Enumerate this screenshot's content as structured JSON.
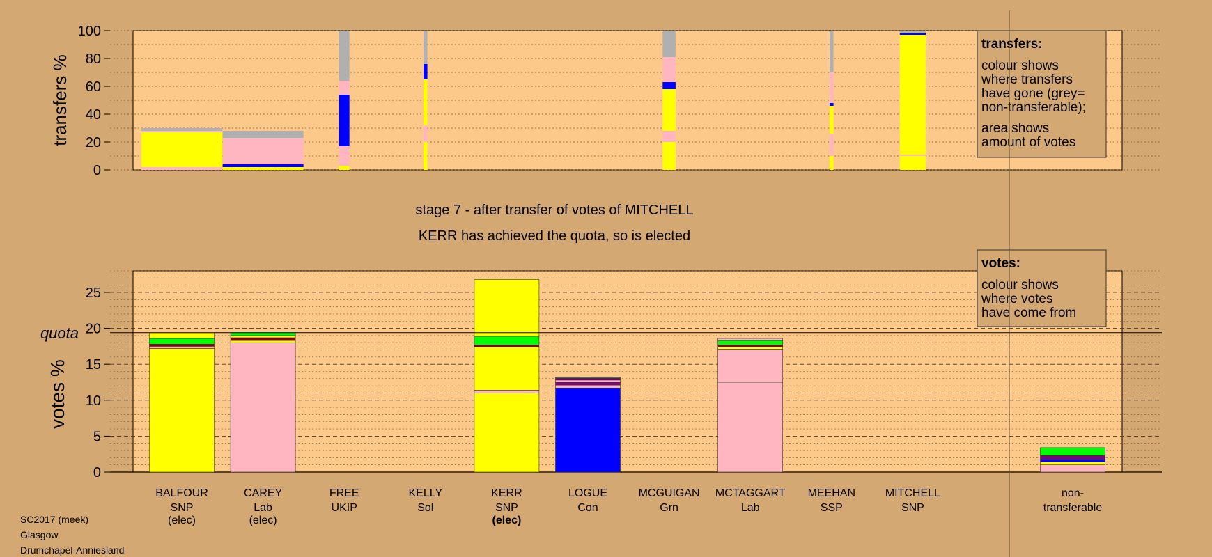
{
  "chart_data": [
    {
      "type": "bar",
      "ylabel": "transfers %",
      "ylim": [
        0,
        100
      ],
      "yticks": [
        0,
        20,
        40,
        60,
        80,
        100
      ],
      "categories": [
        "BALFOUR",
        "CAREY",
        "FREE",
        "KELLY",
        "KERR",
        "LOGUE",
        "MCGUIGAN",
        "MCTAGGART",
        "MEEHAN",
        "MITCHELL"
      ],
      "series": [
        {
          "values": [
            [
              {
                "h": 2,
                "color": "#ffb6c1"
              },
              {
                "h": 25,
                "color": "#ffff00"
              },
              {
                "h": 1,
                "color": "#ffb6c1"
              },
              {
                "h": 2,
                "color": "#b0b0b0"
              }
            ],
            [
              {
                "h": 2,
                "color": "#ffff00"
              },
              {
                "h": 2,
                "color": "#0000ff"
              },
              {
                "h": 19,
                "color": "#ffb6c1"
              },
              {
                "h": 5,
                "color": "#b0b0b0"
              }
            ],
            [
              {
                "h": 3,
                "color": "#ffff00"
              },
              {
                "h": 14,
                "color": "#ffb6c1"
              },
              {
                "h": 37,
                "color": "#0000ff"
              },
              {
                "h": 10,
                "color": "#ffb6c1"
              },
              {
                "h": 36,
                "color": "#b0b0b0"
              }
            ],
            [
              {
                "h": 20,
                "color": "#ffff00"
              },
              {
                "h": 12,
                "color": "#ffb6c1"
              },
              {
                "h": 33,
                "color": "#ffff00"
              },
              {
                "h": 11,
                "color": "#0000ff"
              },
              {
                "h": 24,
                "color": "#b0b0b0"
              }
            ],
            null,
            null,
            [
              {
                "h": 20,
                "color": "#ffff00"
              },
              {
                "h": 8,
                "color": "#ffb6c1"
              },
              {
                "h": 30,
                "color": "#ffff00"
              },
              {
                "h": 5,
                "color": "#0000ff"
              },
              {
                "h": 18,
                "color": "#ffb6c1"
              },
              {
                "h": 19,
                "color": "#b0b0b0"
              }
            ],
            null,
            [
              {
                "h": 10,
                "color": "#ffff00"
              },
              {
                "h": 16,
                "color": "#ffb6c1"
              },
              {
                "h": 20,
                "color": "#ffff00"
              },
              {
                "h": 2,
                "color": "#0000ff"
              },
              {
                "h": 22,
                "color": "#ffb6c1"
              },
              {
                "h": 30,
                "color": "#b0b0b0"
              }
            ],
            [
              {
                "h": 10,
                "color": "#ffff00"
              },
              {
                "h": 1,
                "color": "#ffb6c1"
              },
              {
                "h": 86,
                "color": "#ffff00"
              },
              {
                "h": 1,
                "color": "#0000ff"
              },
              {
                "h": 2,
                "color": "#b0b0b0"
              }
            ]
          ]
        }
      ],
      "widths": [
        1,
        1,
        0.16,
        0.06,
        0,
        0,
        0.2,
        0,
        0.06,
        0.4
      ]
    },
    {
      "type": "bar",
      "ylabel": "votes %",
      "ylim": [
        0,
        28
      ],
      "yticks": [
        0,
        5,
        10,
        15,
        20,
        25
      ],
      "quota": 19.4,
      "quota_label": "quota",
      "categories": [
        "BALFOUR",
        "CAREY",
        "FREE",
        "KELLY",
        "KERR",
        "LOGUE",
        "MCGUIGAN",
        "MCTAGGART",
        "MEEHAN",
        "MITCHELL",
        "non-transferable"
      ],
      "series": [
        {
          "values": [
            [
              {
                "v": 17.2,
                "color": "#ffff00"
              },
              {
                "v": 0.3,
                "color": "#ffb6c1"
              },
              {
                "v": 0.3,
                "color": "#8b0000"
              },
              {
                "v": 0.8,
                "color": "#00ff00"
              },
              {
                "v": 0.8,
                "color": "#ffff00"
              }
            ],
            [
              {
                "v": 18.0,
                "color": "#ffb6c1"
              },
              {
                "v": 0.3,
                "color": "#ffff00"
              },
              {
                "v": 0.4,
                "color": "#8b0000"
              },
              {
                "v": 0.3,
                "color": "#ffff00"
              },
              {
                "v": 0.4,
                "color": "#00ff00"
              }
            ],
            [],
            [],
            [
              {
                "v": 11.0,
                "color": "#ffff00"
              },
              {
                "v": 0.4,
                "color": "#ffb6c1"
              },
              {
                "v": 6.0,
                "color": "#ffff00"
              },
              {
                "v": 0.3,
                "color": "#8b0000"
              },
              {
                "v": 1.2,
                "color": "#00ff00"
              },
              {
                "v": 7.9,
                "color": "#ffff00"
              }
            ],
            [
              {
                "v": 11.7,
                "color": "#0000ff"
              },
              {
                "v": 0.4,
                "color": "#ffb6c1"
              },
              {
                "v": 0.4,
                "color": "#800080"
              },
              {
                "v": 0.3,
                "color": "#ffb6c1"
              },
              {
                "v": 0.3,
                "color": "#800080"
              },
              {
                "v": 0.1,
                "color": "#00ff00"
              }
            ],
            [],
            [
              {
                "v": 12.5,
                "color": "#ffb6c1"
              },
              {
                "v": 4.6,
                "color": "#ffb6c1"
              },
              {
                "v": 0.3,
                "color": "#ffff00"
              },
              {
                "v": 0.3,
                "color": "#8b0000"
              },
              {
                "v": 0.6,
                "color": "#00ff00"
              },
              {
                "v": 0.3,
                "color": "#ffb6c1"
              }
            ],
            [],
            [],
            [
              {
                "v": 1.0,
                "color": "#ffb6c1"
              },
              {
                "v": 0.4,
                "color": "#ffff00"
              },
              {
                "v": 0.4,
                "color": "#0000ff"
              },
              {
                "v": 0.5,
                "color": "#800080"
              },
              {
                "v": 1.1,
                "color": "#00ff00"
              }
            ]
          ]
        }
      ]
    }
  ],
  "legend_transfers": {
    "title": "transfers:",
    "lines1": [
      "colour shows",
      "where transfers",
      "have gone (grey=",
      "non-transferable);"
    ],
    "lines2": [
      "area shows",
      "amount of votes"
    ]
  },
  "legend_votes": {
    "title": "votes:",
    "lines": [
      "colour shows",
      "where votes",
      "have come from"
    ]
  },
  "stage_text": "stage 7 - after transfer of votes of MITCHELL",
  "elected_text": "KERR has achieved the quota, so is elected",
  "candidates": [
    {
      "name": "BALFOUR",
      "party": "SNP",
      "status": "(elec)",
      "bold": false
    },
    {
      "name": "CAREY",
      "party": "Lab",
      "status": "(elec)",
      "bold": false
    },
    {
      "name": "FREE",
      "party": "UKIP",
      "status": "",
      "bold": false
    },
    {
      "name": "KELLY",
      "party": "Sol",
      "status": "",
      "bold": false
    },
    {
      "name": "KERR",
      "party": "SNP",
      "status": "(elec)",
      "bold": true
    },
    {
      "name": "LOGUE",
      "party": "Con",
      "status": "",
      "bold": false
    },
    {
      "name": "MCGUIGAN",
      "party": "Grn",
      "status": "",
      "bold": false
    },
    {
      "name": "MCTAGGART",
      "party": "Lab",
      "status": "",
      "bold": false
    },
    {
      "name": "MEEHAN",
      "party": "SSP",
      "status": "",
      "bold": false
    },
    {
      "name": "MITCHELL",
      "party": "SNP",
      "status": "",
      "bold": false
    }
  ],
  "nontransferable_label": [
    "non-",
    "transferable"
  ],
  "footer": [
    "SC2017 (meek)",
    "Glasgow",
    "Drumchapel-Anniesland"
  ],
  "colors": {
    "background": "#d4a873",
    "plot_bg": "#fdc98a",
    "snp": "#ffff00",
    "lab": "#ffb6c1",
    "con": "#0000ff",
    "grn": "#00ff00",
    "nontransferable": "#b0b0b0"
  }
}
